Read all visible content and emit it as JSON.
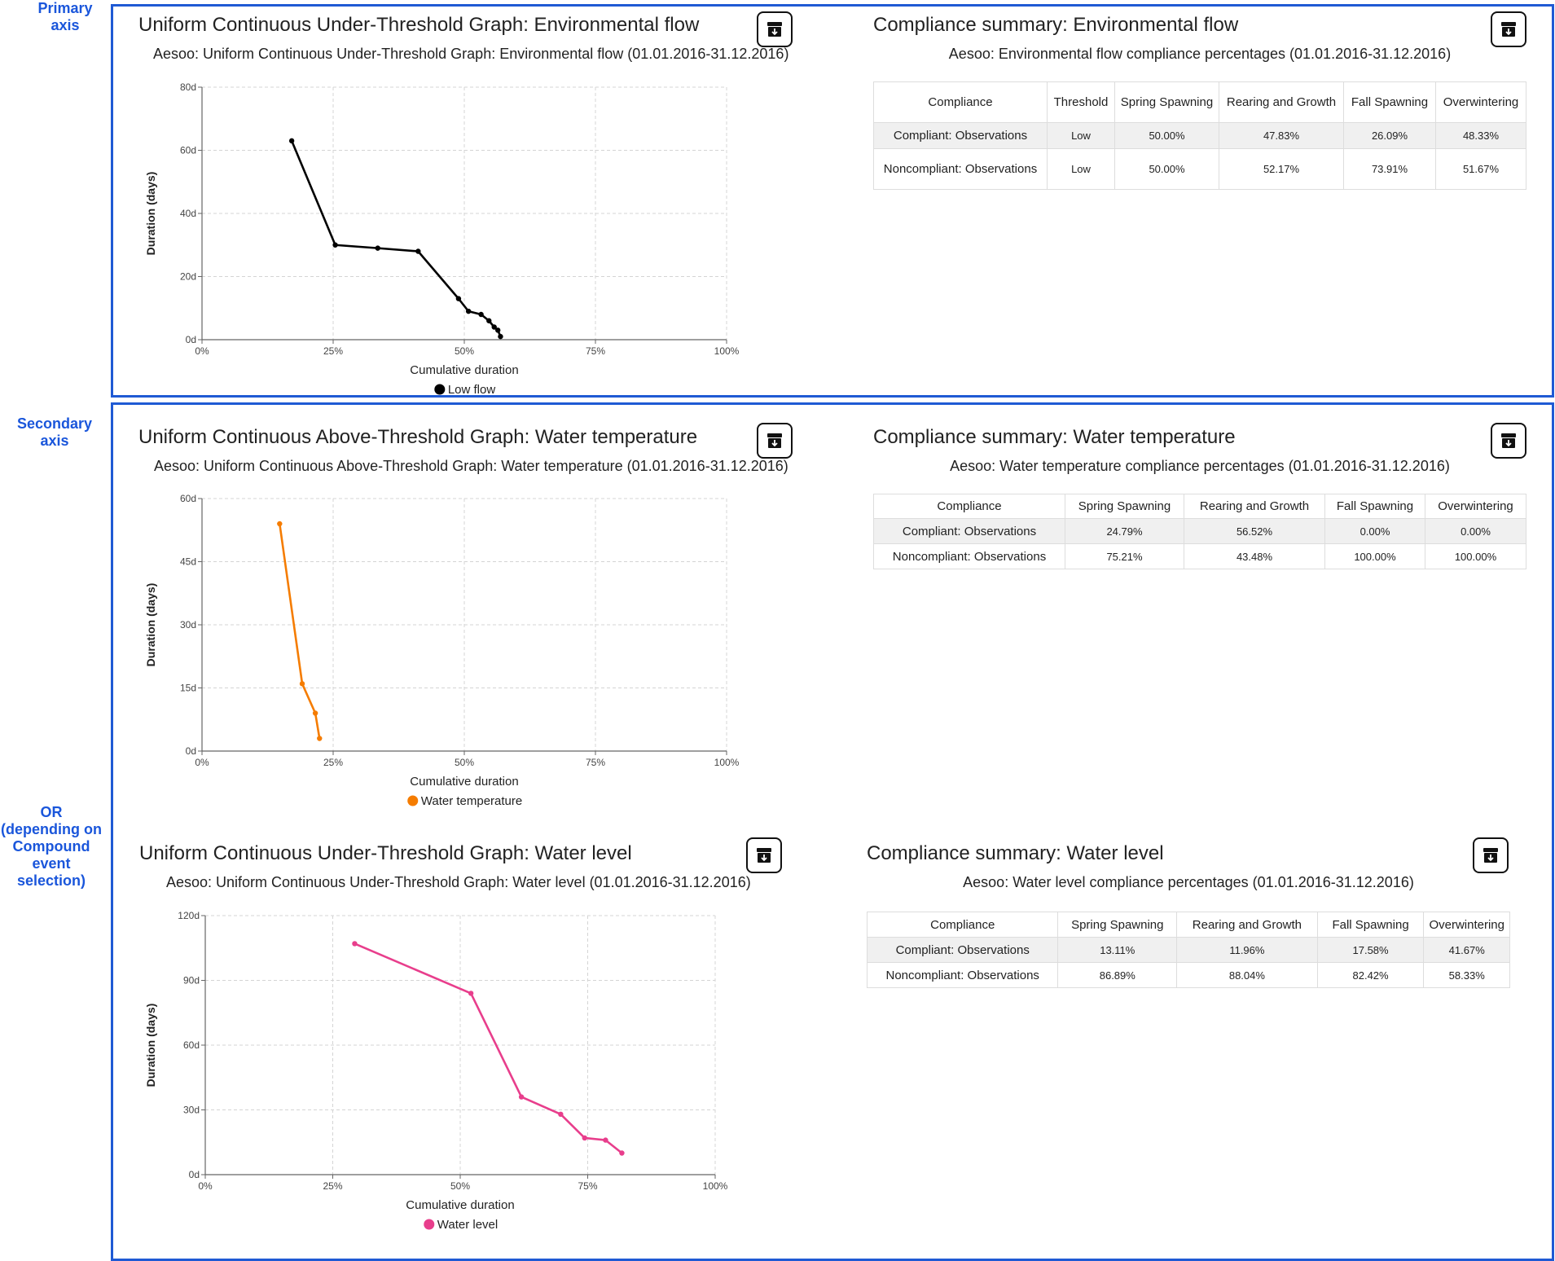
{
  "side_labels": {
    "primary": "Primary\naxis",
    "secondary": "Secondary\naxis",
    "or_note": "OR\n(depending on\nCompound\nevent\nselection)"
  },
  "panels": {
    "flow": {
      "chart_title": "Uniform Continuous Under-Threshold Graph: Environmental flow",
      "chart_subtitle": "Aesoo: Uniform Continuous Under-Threshold Graph: Environmental flow (01.01.2016-31.12.2016)",
      "summary_title": "Compliance summary: Environmental flow",
      "summary_subtitle": "Aesoo: Environmental flow compliance percentages (01.01.2016-31.12.2016)",
      "table": {
        "headers": [
          "Compliance",
          "Threshold",
          "Spring Spawning",
          "Rearing and Growth",
          "Fall Spawning",
          "Overwintering"
        ],
        "rows": [
          [
            "Compliant: Observations",
            "Low",
            "50.00%",
            "47.83%",
            "26.09%",
            "48.33%"
          ],
          [
            "Noncompliant: Observations",
            "Low",
            "50.00%",
            "52.17%",
            "73.91%",
            "51.67%"
          ]
        ]
      }
    },
    "temp": {
      "chart_title": "Uniform Continuous Above-Threshold Graph: Water temperature",
      "chart_subtitle": "Aesoo: Uniform Continuous Above-Threshold Graph: Water temperature (01.01.2016-31.12.2016)",
      "summary_title": "Compliance summary: Water temperature",
      "summary_subtitle": "Aesoo: Water temperature compliance percentages (01.01.2016-31.12.2016)",
      "table": {
        "headers": [
          "Compliance",
          "Spring Spawning",
          "Rearing and Growth",
          "Fall Spawning",
          "Overwintering"
        ],
        "rows": [
          [
            "Compliant: Observations",
            "24.79%",
            "56.52%",
            "0.00%",
            "0.00%"
          ],
          [
            "Noncompliant: Observations",
            "75.21%",
            "43.48%",
            "100.00%",
            "100.00%"
          ]
        ]
      }
    },
    "level": {
      "chart_title": "Uniform Continuous Under-Threshold Graph: Water level",
      "chart_subtitle": "Aesoo: Uniform Continuous Under-Threshold Graph: Water level (01.01.2016-31.12.2016)",
      "summary_title": "Compliance summary: Water level",
      "summary_subtitle": "Aesoo: Water level compliance percentages (01.01.2016-31.12.2016)",
      "table": {
        "headers": [
          "Compliance",
          "Spring Spawning",
          "Rearing and Growth",
          "Fall Spawning",
          "Overwintering"
        ],
        "rows": [
          [
            "Compliant: Observations",
            "13.11%",
            "11.96%",
            "17.58%",
            "41.67%"
          ],
          [
            "Noncompliant: Observations",
            "86.89%",
            "88.04%",
            "82.42%",
            "58.33%"
          ]
        ]
      }
    }
  },
  "chart_data": [
    {
      "id": "flow",
      "type": "line",
      "xlabel": "Cumulative duration",
      "ylabel": "Duration (days)",
      "xlim": [
        0,
        100
      ],
      "ylim": [
        0,
        80
      ],
      "xticks": [
        "0%",
        "25%",
        "50%",
        "75%",
        "100%"
      ],
      "yticks": [
        "0d",
        "20d",
        "40d",
        "60d",
        "80d"
      ],
      "grid": true,
      "legend_position": "bottom",
      "series": [
        {
          "name": "Low flow",
          "color": "#000000",
          "x": [
            17.1,
            25.4,
            33.5,
            41.2,
            48.9,
            50.8,
            53.2,
            54.7,
            55.7,
            56.4,
            56.9
          ],
          "y": [
            63,
            30,
            29,
            28,
            13,
            9,
            8,
            6,
            4,
            3,
            1
          ]
        }
      ]
    },
    {
      "id": "temp",
      "type": "line",
      "xlabel": "Cumulative duration",
      "ylabel": "Duration (days)",
      "xlim": [
        0,
        100
      ],
      "ylim": [
        0,
        60
      ],
      "xticks": [
        "0%",
        "25%",
        "50%",
        "75%",
        "100%"
      ],
      "yticks": [
        "0d",
        "15d",
        "30d",
        "45d",
        "60d"
      ],
      "grid": true,
      "legend_position": "bottom",
      "series": [
        {
          "name": "Water temperature",
          "color": "#f57c00",
          "x": [
            14.8,
            19.1,
            21.6,
            22.4
          ],
          "y": [
            54,
            16,
            9,
            3
          ]
        }
      ]
    },
    {
      "id": "level",
      "type": "line",
      "xlabel": "Cumulative duration",
      "ylabel": "Duration (days)",
      "xlim": [
        0,
        100
      ],
      "ylim": [
        0,
        120
      ],
      "xticks": [
        "0%",
        "25%",
        "50%",
        "75%",
        "100%"
      ],
      "yticks": [
        "0d",
        "30d",
        "60d",
        "90d",
        "120d"
      ],
      "grid": true,
      "legend_position": "bottom",
      "series": [
        {
          "name": "Water level",
          "color": "#e83e8c",
          "x": [
            29.3,
            52.1,
            62.0,
            69.7,
            74.4,
            78.5,
            81.7
          ],
          "y": [
            107,
            84,
            36,
            28,
            17,
            16,
            10
          ]
        }
      ]
    }
  ]
}
